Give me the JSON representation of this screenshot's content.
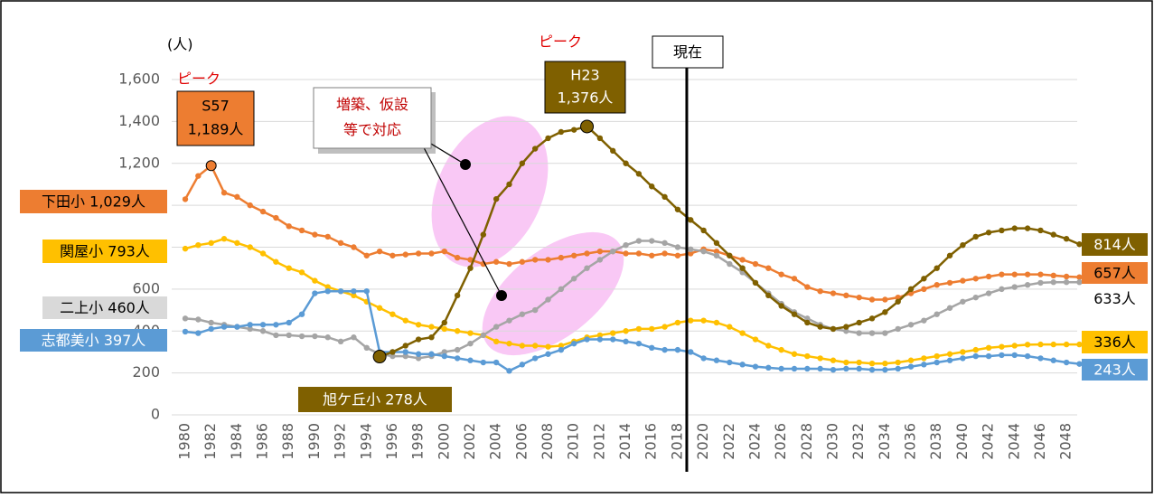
{
  "chart_data": {
    "type": "line",
    "y_unit": "(人)",
    "categories": [
      "1980",
      null,
      "1982",
      null,
      "1984",
      null,
      "1986",
      null,
      "1988",
      null,
      "1990",
      null,
      "1992",
      null,
      "1994",
      null,
      "1996",
      null,
      "1998",
      null,
      "2000",
      null,
      "2002",
      null,
      "2004",
      null,
      "2006",
      null,
      "2008",
      null,
      "2010",
      null,
      "2012",
      null,
      "2014",
      null,
      "2016",
      null,
      "2018",
      null,
      "2020",
      null,
      "2022",
      null,
      "2024",
      null,
      "2026",
      null,
      "2028",
      null,
      "2030",
      null,
      "2032",
      null,
      "2034",
      null,
      "2036",
      null,
      "2038",
      null,
      "2040",
      null,
      "2042",
      null,
      "2044",
      null,
      "2046",
      null,
      "2048",
      null
    ],
    "ylim": [
      0,
      1600
    ],
    "yticks": [
      0,
      200,
      400,
      600,
      800,
      {
        "value": 1000,
        "label": "1,000"
      },
      {
        "value": 1200,
        "label": "1,200"
      },
      {
        "value": 1400,
        "label": "1,400"
      },
      {
        "value": 1600,
        "label": "1,600"
      }
    ],
    "grid": true,
    "series": [
      {
        "color": "#ED7D31",
        "label_left": "下田小 1,029人",
        "label_right": "657人",
        "values": [
          1029,
          1140,
          1189,
          1060,
          1040,
          1000,
          970,
          940,
          900,
          880,
          860,
          850,
          820,
          800,
          760,
          780,
          760,
          765,
          770,
          770,
          780,
          750,
          740,
          720,
          730,
          720,
          730,
          740,
          740,
          750,
          760,
          770,
          780,
          780,
          770,
          770,
          760,
          770,
          760,
          770,
          790,
          780,
          760,
          740,
          720,
          700,
          670,
          650,
          610,
          590,
          580,
          570,
          560,
          550,
          550,
          560,
          580,
          600,
          620,
          630,
          640,
          650,
          660,
          670,
          670,
          670,
          670,
          665,
          660,
          657
        ]
      },
      {
        "color": "#FFC000",
        "label_left": "関屋小 793人",
        "label_right": "336人",
        "values": [
          793,
          810,
          820,
          840,
          820,
          800,
          770,
          730,
          700,
          680,
          640,
          610,
          590,
          570,
          540,
          510,
          480,
          450,
          430,
          420,
          410,
          400,
          390,
          380,
          350,
          340,
          330,
          330,
          325,
          330,
          350,
          370,
          380,
          390,
          400,
          410,
          410,
          420,
          440,
          450,
          450,
          440,
          420,
          390,
          360,
          330,
          310,
          290,
          280,
          270,
          260,
          250,
          250,
          245,
          245,
          250,
          260,
          270,
          280,
          290,
          300,
          310,
          320,
          325,
          330,
          335,
          336,
          336,
          336,
          336
        ]
      },
      {
        "color": "#A5A5A5",
        "label_left": "二上小 460人",
        "label_right": "633人",
        "values": [
          460,
          455,
          440,
          430,
          420,
          410,
          400,
          380,
          380,
          375,
          375,
          370,
          350,
          370,
          320,
          290,
          280,
          280,
          270,
          280,
          300,
          310,
          340,
          380,
          420,
          450,
          480,
          500,
          550,
          600,
          650,
          700,
          740,
          780,
          810,
          830,
          830,
          820,
          800,
          790,
          780,
          760,
          720,
          680,
          630,
          580,
          530,
          490,
          460,
          430,
          410,
          400,
          390,
          390,
          390,
          410,
          430,
          450,
          480,
          510,
          540,
          560,
          580,
          600,
          610,
          620,
          630,
          633,
          633,
          633
        ]
      },
      {
        "color": "#5B9BD5",
        "label_left": "志都美小 397人",
        "label_right": "243人",
        "values": [
          397,
          390,
          410,
          420,
          420,
          430,
          430,
          430,
          440,
          480,
          580,
          590,
          590,
          590,
          590,
          300,
          300,
          300,
          290,
          290,
          280,
          270,
          260,
          250,
          250,
          210,
          240,
          270,
          290,
          310,
          340,
          360,
          360,
          360,
          350,
          340,
          320,
          310,
          310,
          300,
          270,
          260,
          250,
          240,
          230,
          225,
          220,
          220,
          220,
          220,
          215,
          220,
          220,
          215,
          215,
          220,
          230,
          240,
          250,
          260,
          270,
          280,
          280,
          285,
          285,
          280,
          270,
          260,
          250,
          243
        ]
      },
      {
        "color": "#7F6000",
        "label_left": "旭ケ丘小 278人",
        "label_right": "814人",
        "values": [
          null,
          null,
          null,
          null,
          null,
          null,
          null,
          null,
          null,
          null,
          null,
          null,
          null,
          null,
          null,
          278,
          300,
          330,
          360,
          370,
          440,
          570,
          700,
          860,
          1030,
          1100,
          1200,
          1270,
          1320,
          1350,
          1360,
          1376,
          1320,
          1260,
          1200,
          1150,
          1090,
          1040,
          980,
          930,
          880,
          820,
          760,
          700,
          630,
          570,
          520,
          480,
          440,
          420,
          410,
          420,
          440,
          460,
          490,
          540,
          600,
          650,
          700,
          760,
          810,
          850,
          870,
          880,
          890,
          890,
          880,
          860,
          840,
          814
        ]
      }
    ],
    "peaks": [
      {
        "tag": "ピーク",
        "era": "S57",
        "label": "1,189人"
      },
      {
        "tag": "ピーク",
        "era": "H23",
        "label": "1,376人"
      }
    ],
    "callout": [
      "増築、仮設",
      "等で対応"
    ],
    "current_marker": "現在"
  }
}
